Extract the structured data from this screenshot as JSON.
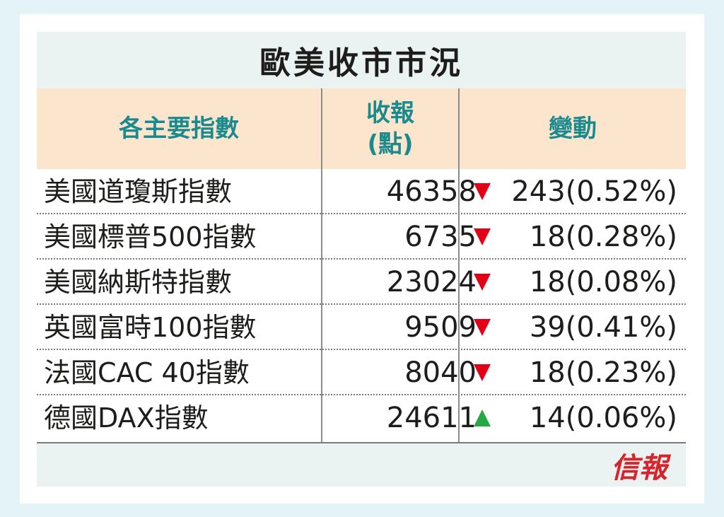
{
  "title": "歐美收市市況",
  "headers": {
    "index": "各主要指數",
    "close_line1": "收報",
    "close_line2": "(點)",
    "change": "變動"
  },
  "colors": {
    "down": "#e10016",
    "up": "#27a845",
    "header_text": "#1b8a8f",
    "header_bg": "#fbe5cc"
  },
  "rows": [
    {
      "name": "美國道瓊斯指數",
      "close": "46358",
      "direction": "down",
      "change": "243(0.52%)"
    },
    {
      "name": "美國標普500指數",
      "close": "6735",
      "direction": "down",
      "change": "18(0.28%)"
    },
    {
      "name": "美國納斯特指數",
      "close": "23024",
      "direction": "down",
      "change": "18(0.08%)"
    },
    {
      "name": "英國富時100指數",
      "close": "9509",
      "direction": "down",
      "change": "39(0.41%)"
    },
    {
      "name": "法國CAC 40指數",
      "close": "8040",
      "direction": "down",
      "change": "18(0.23%)"
    },
    {
      "name": "德國DAX指數",
      "close": "24611",
      "direction": "up",
      "change": "14(0.06%)"
    }
  ],
  "logo": "信報"
}
